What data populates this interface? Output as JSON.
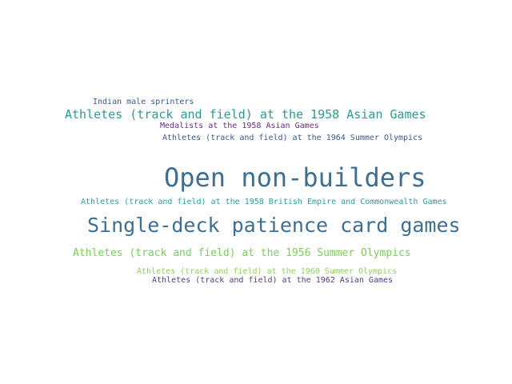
{
  "words": [
    {
      "text": "Indian male sprinters",
      "color": "#3b5a8c"
    },
    {
      "text": "Athletes (track and field) at the 1958 Asian Games",
      "color": "#2a9d8f"
    },
    {
      "text": "Medalists at the 1958 Asian Games",
      "color": "#6a2c8c"
    },
    {
      "text": "Athletes (track and field) at the 1964 Summer Olympics",
      "color": "#3b5a8c"
    },
    {
      "text": "Open non-builders",
      "color": "#3e6e91"
    },
    {
      "text": "Athletes (track and field) at the 1958 British Empire and Commonwealth Games",
      "color": "#2aa198"
    },
    {
      "text": "Single-deck patience card games",
      "color": "#3e6e91"
    },
    {
      "text": "Athletes (track and field) at the 1956 Summer Olympics",
      "color": "#7bcf5a"
    },
    {
      "text": "Athletes (track and field) at the 1960 Summer Olympics",
      "color": "#8fd05a"
    },
    {
      "text": "Athletes (track and field) at the 1962 Asian Games",
      "color": "#4a3f8c"
    }
  ]
}
